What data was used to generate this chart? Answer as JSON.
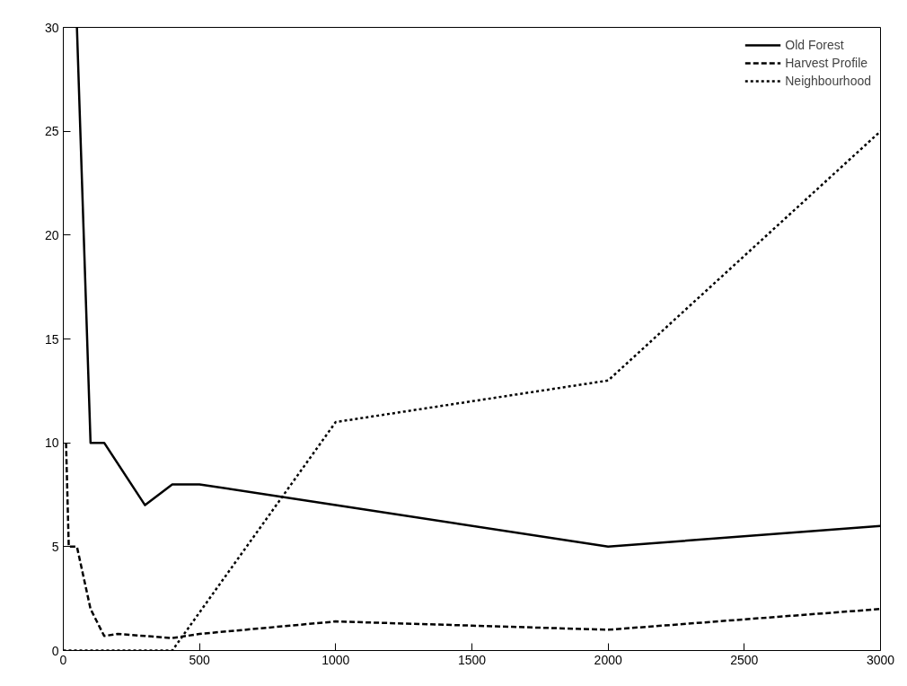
{
  "chart_data": {
    "type": "line",
    "x": [
      50,
      100,
      150,
      300,
      400,
      500,
      1000,
      2000,
      3000
    ],
    "series": [
      {
        "name": "Old Forest",
        "color": "#000000",
        "line_style": "solid",
        "values": [
          30,
          10,
          10,
          7,
          8,
          8,
          7,
          5,
          6
        ]
      },
      {
        "name": "Harvest Profile",
        "color": "#000000",
        "line_style": "dashed",
        "x": [
          10,
          20,
          50,
          100,
          150,
          200,
          300,
          400,
          500,
          1000,
          1500,
          2000,
          3000
        ],
        "values": [
          10,
          5,
          5,
          2,
          0.7,
          0.8,
          0.7,
          0.6,
          0.8,
          1.4,
          1.2,
          1.0,
          2.0
        ]
      },
      {
        "name": "Neighbourhood",
        "color": "#000000",
        "line_style": "dotted",
        "x": [
          0,
          400,
          1000,
          2000,
          3000
        ],
        "values": [
          0,
          0,
          11,
          13,
          25
        ]
      }
    ],
    "xlim": [
      0,
      3000
    ],
    "xticks": [
      0,
      500,
      1000,
      1500,
      2000,
      2500,
      3000
    ],
    "ylim": [
      0,
      30
    ],
    "yticks": [
      0,
      5,
      10,
      15,
      20,
      25,
      30
    ],
    "grid": false,
    "legend": "top right",
    "marker": "none"
  }
}
